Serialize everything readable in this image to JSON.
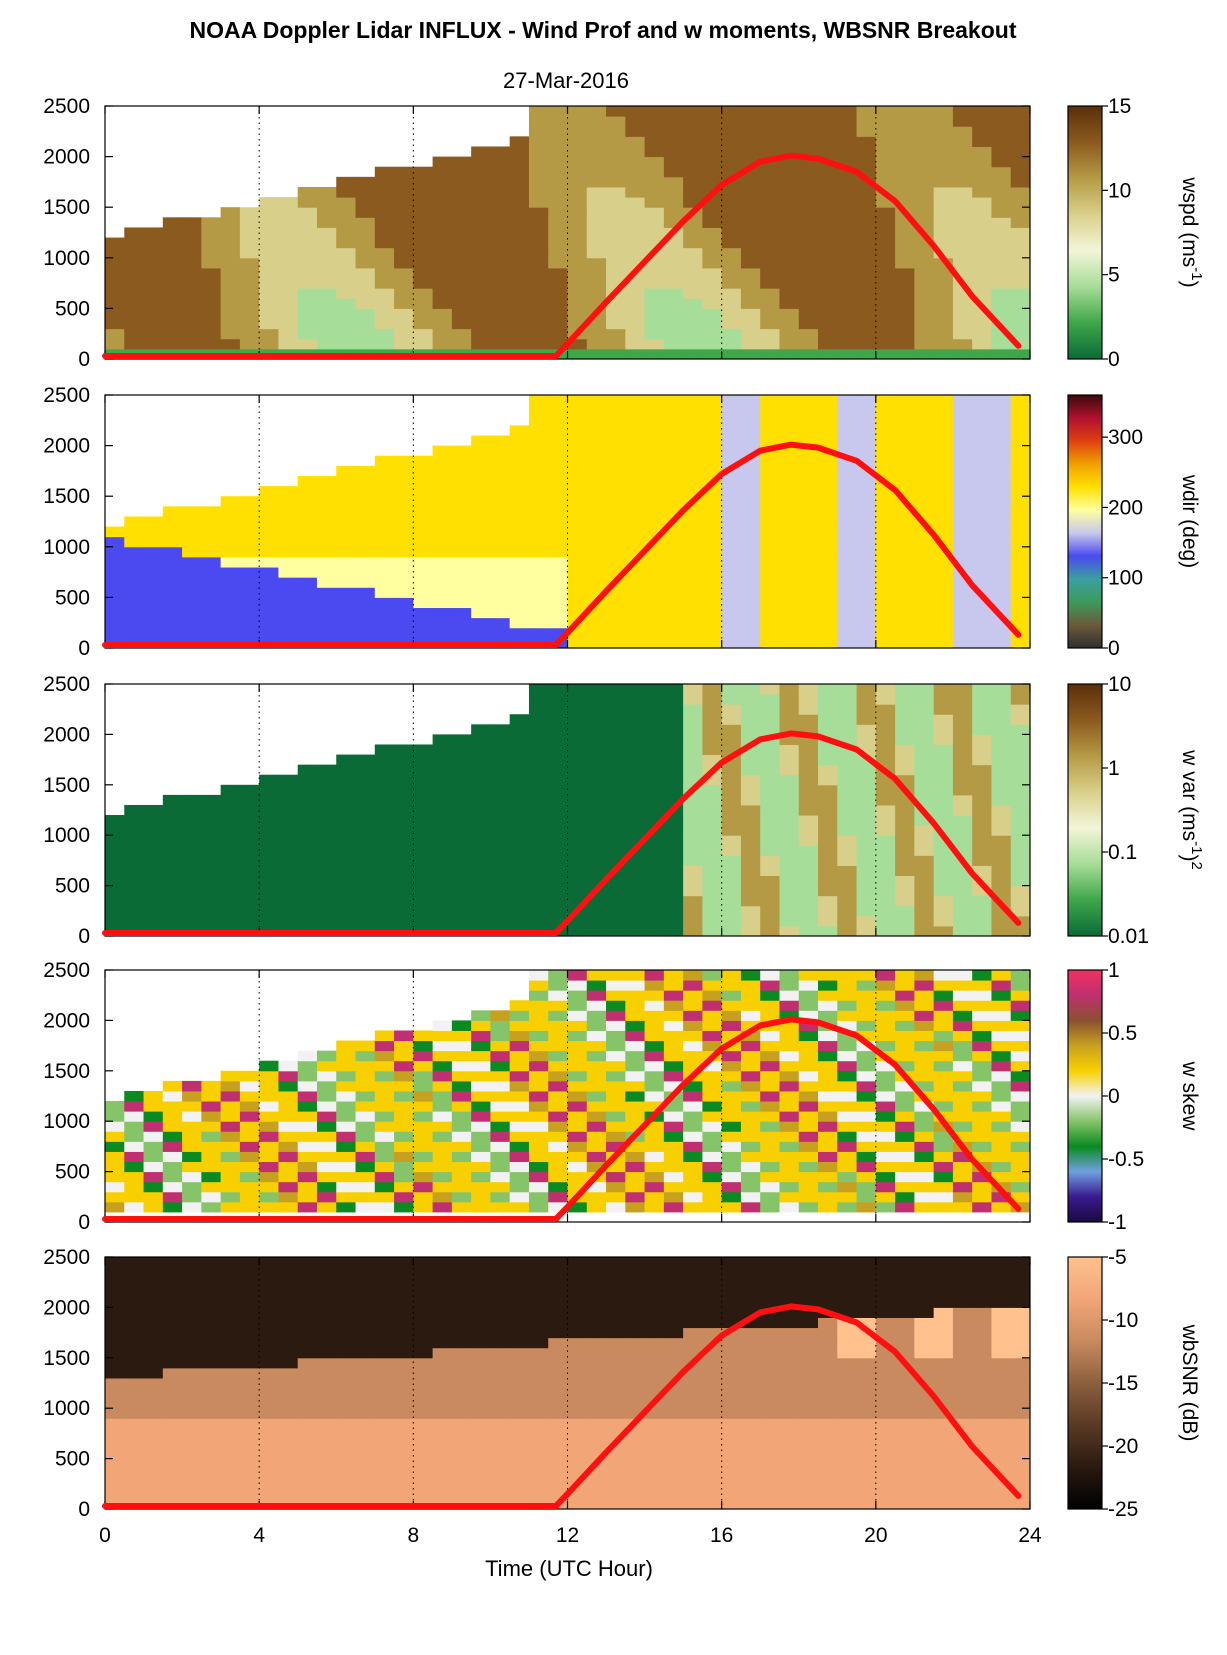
{
  "figure": {
    "title": "NOAA Doppler Lidar INFLUX - Wind Prof and w moments, WBSNR Breakout",
    "date": "27-Mar-2016",
    "xlabel": "Time (UTC Hour)"
  },
  "chart_data": [
    {
      "type": "heatmap",
      "ylabel_unit": "",
      "ylim": [
        0,
        2500
      ],
      "yticks": [
        0,
        500,
        1000,
        1500,
        2000,
        2500
      ],
      "xlim": [
        0,
        24
      ],
      "xticks": [
        0,
        4,
        8,
        12,
        16,
        20,
        24
      ],
      "grid": "vertical dotted at 4, 8, 12, 16, 20",
      "colorbar": {
        "label_main": "wspd (ms",
        "label_sup": "-1",
        "label_end": ")",
        "range": [
          0,
          15
        ],
        "ticks": [
          "0",
          "5",
          "10",
          "15"
        ],
        "tick_values": [
          0,
          5,
          10,
          15
        ],
        "colors": [
          "#0a6b36",
          "#3fa64a",
          "#a6dd98",
          "#f4f5d8",
          "#d8d08a",
          "#b59a45",
          "#8b5a1e",
          "#5a300a"
        ]
      }
    },
    {
      "type": "heatmap",
      "ylim": [
        0,
        2500
      ],
      "yticks": [
        0,
        500,
        1000,
        1500,
        2000,
        2500
      ],
      "xlim": [
        0,
        24
      ],
      "colorbar": {
        "label_main": "wdir (deg)",
        "range": [
          0,
          360
        ],
        "ticks": [
          "0",
          "100",
          "200",
          "300"
        ],
        "tick_values": [
          0,
          100,
          200,
          300
        ],
        "colors": [
          "#2f2f2f",
          "#6b5a3a",
          "#3d9a5c",
          "#3aa0a0",
          "#4a4af0",
          "#c8c8ee",
          "#ffffa0",
          "#ffe000",
          "#f0a000",
          "#e04010",
          "#b01030",
          "#3a0a0a"
        ]
      }
    },
    {
      "type": "heatmap",
      "ylim": [
        0,
        2500
      ],
      "yticks": [
        0,
        500,
        1000,
        1500,
        2000,
        2500
      ],
      "xlim": [
        0,
        24
      ],
      "colorbar": {
        "label_main": "w var (ms",
        "label_sup": "-1",
        "label_end": ")",
        "label_sup2": "2",
        "scale": "log",
        "range": [
          0.01,
          10
        ],
        "ticks": [
          "0.01",
          "0.1",
          "1",
          "10"
        ],
        "tick_values": [
          0.01,
          0.1,
          1,
          10
        ],
        "colors": [
          "#0a6b36",
          "#3fa64a",
          "#a6dd98",
          "#f4f5d8",
          "#d8d08a",
          "#b59a45",
          "#8b5a1e",
          "#5a300a"
        ]
      }
    },
    {
      "type": "heatmap",
      "ylim": [
        0,
        2500
      ],
      "yticks": [
        0,
        500,
        1000,
        1500,
        2000,
        2500
      ],
      "xlim": [
        0,
        24
      ],
      "colorbar": {
        "label_main": "w skew",
        "range": [
          -1,
          1
        ],
        "ticks": [
          "-1",
          "-0.5",
          "0",
          "0.5",
          "1"
        ],
        "tick_values": [
          -1,
          -0.5,
          0,
          0.5,
          1
        ],
        "colors": [
          "#1a0a40",
          "#3a1a90",
          "#6fa0e0",
          "#0a8a20",
          "#86c46a",
          "#f2f2f2",
          "#f8d000",
          "#c8a020",
          "#8a5030",
          "#c03070",
          "#f03060"
        ]
      }
    },
    {
      "type": "heatmap",
      "ylim": [
        0,
        2500
      ],
      "yticks": [
        0,
        500,
        1000,
        1500,
        2000,
        2500
      ],
      "xlim": [
        0,
        24
      ],
      "colorbar": {
        "label_main": "wbSNR (dB)",
        "range": [
          -25,
          -5
        ],
        "ticks": [
          "-25",
          "-20",
          "-15",
          "-10",
          "-5"
        ],
        "tick_values": [
          -25,
          -20,
          -15,
          -10,
          -5
        ],
        "colors": [
          "#000000",
          "#2a1a10",
          "#5a3a24",
          "#8c5f3e",
          "#c88a5e",
          "#f2a678",
          "#ffc18e"
        ]
      }
    }
  ],
  "overlay_curve": {
    "color": "#ff1010",
    "x": [
      0,
      11.7,
      12,
      13,
      14,
      15,
      16,
      17,
      17.8,
      18.5,
      19.5,
      20.5,
      21.5,
      22.5,
      23.7
    ],
    "y": [
      30,
      30,
      150,
      560,
      960,
      1360,
      1720,
      1950,
      2010,
      1980,
      1850,
      1560,
      1120,
      620,
      130
    ]
  }
}
